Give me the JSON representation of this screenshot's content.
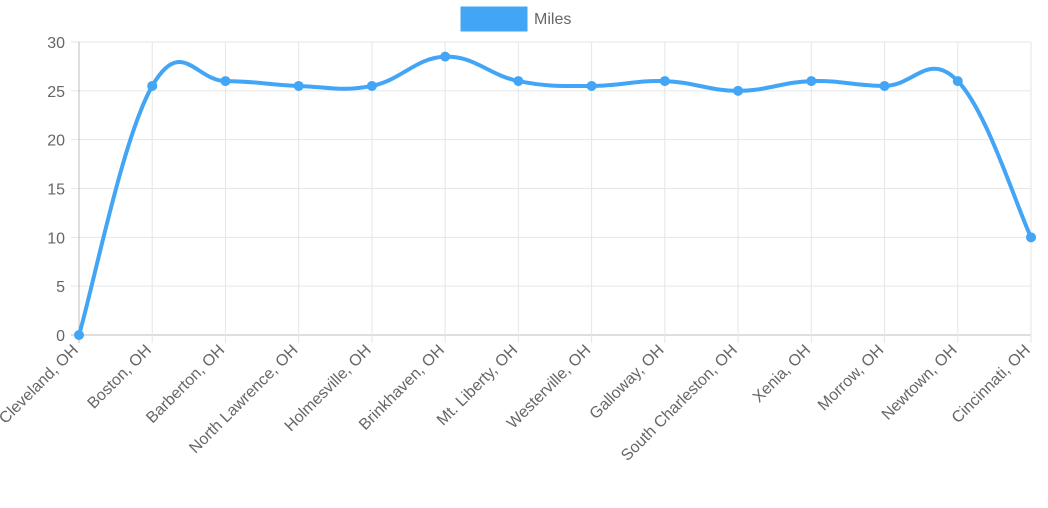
{
  "legend": {
    "label": "Miles",
    "color": "#42a5f5"
  },
  "chart_data": {
    "type": "line",
    "smooth": true,
    "categories": [
      "Cleveland, OH",
      "Boston, OH",
      "Barberton, OH",
      "North Lawrence, OH",
      "Holmesville, OH",
      "Brinkhaven, OH",
      "Mt. Liberty, OH",
      "Westerville, OH",
      "Galloway, OH",
      "South Charleston, OH",
      "Xenia, OH",
      "Morrow, OH",
      "Newtown, OH",
      "Cincinnati, OH"
    ],
    "series": [
      {
        "name": "Miles",
        "color": "#42a5f5",
        "values": [
          0,
          25.5,
          26,
          25.5,
          25.5,
          28.5,
          26,
          25.5,
          26,
          25,
          26,
          25.5,
          26,
          10
        ]
      }
    ],
    "ylim": [
      0,
      30
    ],
    "yticks": [
      0,
      5,
      10,
      15,
      20,
      25,
      30
    ],
    "grid": true,
    "legend_position": "top-center",
    "title": "",
    "xlabel": "",
    "ylabel": ""
  }
}
